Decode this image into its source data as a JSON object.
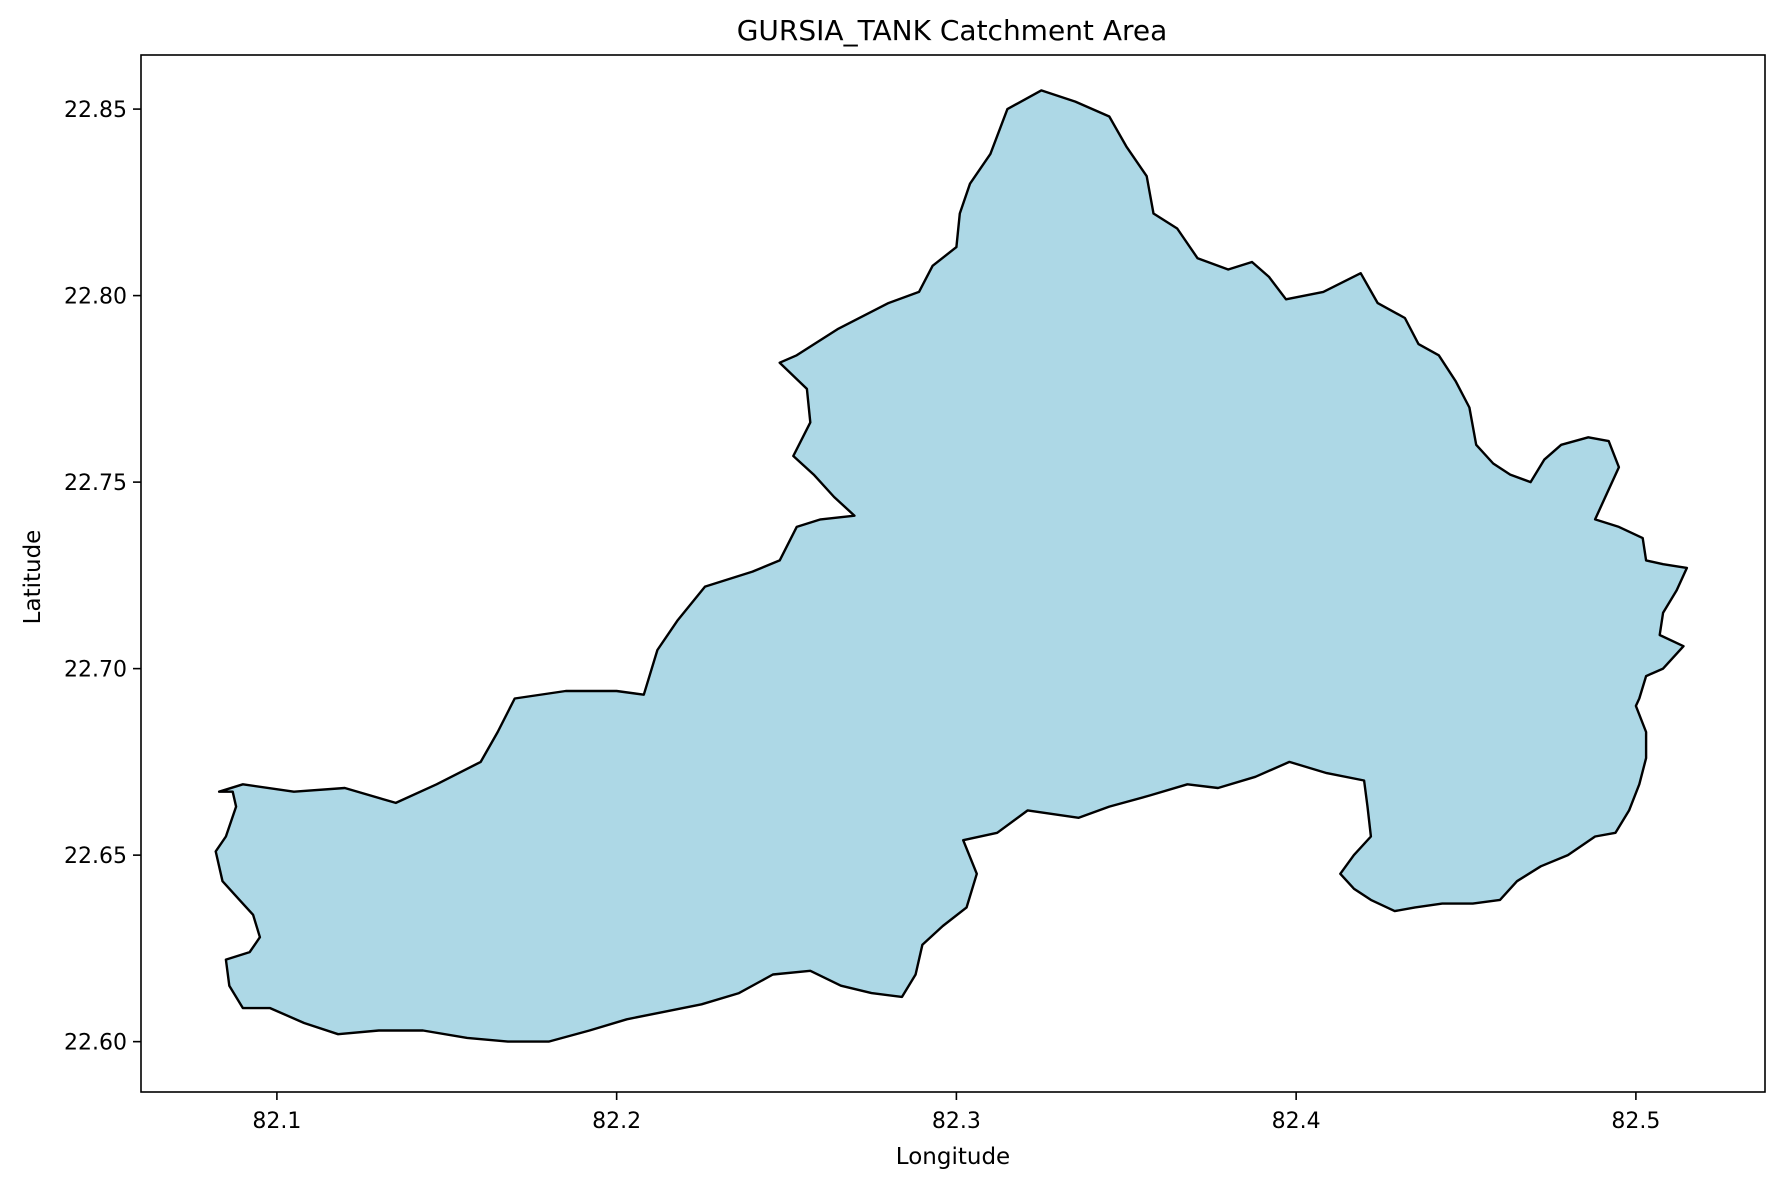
{
  "chart_data": {
    "type": "map-polygon",
    "title": "GURSIA_TANK Catchment Area",
    "xlabel": "Longitude",
    "ylabel": "Latitude",
    "xlim": [
      82.06,
      82.538
    ],
    "ylim": [
      22.5865,
      22.8645
    ],
    "xticks": [
      82.1,
      82.2,
      82.3,
      82.4,
      82.5
    ],
    "xtick_labels": [
      "82.1",
      "82.2",
      "82.3",
      "82.4",
      "82.5"
    ],
    "yticks": [
      22.6,
      22.65,
      22.7,
      22.75,
      22.8,
      22.85
    ],
    "ytick_labels": [
      "22.60",
      "22.65",
      "22.70",
      "22.75",
      "22.80",
      "22.85"
    ],
    "grid": false,
    "fill_color": "#add8e6",
    "edge_color": "#000000",
    "boundary": [
      [
        82.083,
        22.667
      ],
      [
        82.09,
        22.669
      ],
      [
        82.105,
        22.667
      ],
      [
        82.12,
        22.668
      ],
      [
        82.135,
        22.664
      ],
      [
        82.147,
        22.669
      ],
      [
        82.16,
        22.675
      ],
      [
        82.165,
        22.683
      ],
      [
        82.17,
        22.692
      ],
      [
        82.185,
        22.694
      ],
      [
        82.2,
        22.694
      ],
      [
        82.208,
        22.693
      ],
      [
        82.212,
        22.705
      ],
      [
        82.218,
        22.713
      ],
      [
        82.226,
        22.722
      ],
      [
        82.24,
        22.726
      ],
      [
        82.248,
        22.729
      ],
      [
        82.253,
        22.738
      ],
      [
        82.26,
        22.74
      ],
      [
        82.27,
        22.741
      ],
      [
        82.264,
        22.746
      ],
      [
        82.258,
        22.752
      ],
      [
        82.252,
        22.757
      ],
      [
        82.257,
        22.766
      ],
      [
        82.256,
        22.775
      ],
      [
        82.248,
        22.782
      ],
      [
        82.253,
        22.784
      ],
      [
        82.265,
        22.791
      ],
      [
        82.28,
        22.798
      ],
      [
        82.289,
        22.801
      ],
      [
        82.293,
        22.808
      ],
      [
        82.3,
        22.813
      ],
      [
        82.301,
        22.822
      ],
      [
        82.304,
        22.83
      ],
      [
        82.31,
        22.838
      ],
      [
        82.315,
        22.85
      ],
      [
        82.325,
        22.855
      ],
      [
        82.335,
        22.852
      ],
      [
        82.345,
        22.848
      ],
      [
        82.35,
        22.84
      ],
      [
        82.356,
        22.832
      ],
      [
        82.358,
        22.822
      ],
      [
        82.365,
        22.818
      ],
      [
        82.371,
        22.81
      ],
      [
        82.38,
        22.807
      ],
      [
        82.387,
        22.809
      ],
      [
        82.392,
        22.805
      ],
      [
        82.397,
        22.799
      ],
      [
        82.408,
        22.801
      ],
      [
        82.419,
        22.806
      ],
      [
        82.424,
        22.798
      ],
      [
        82.432,
        22.794
      ],
      [
        82.436,
        22.787
      ],
      [
        82.442,
        22.784
      ],
      [
        82.447,
        22.777
      ],
      [
        82.451,
        22.77
      ],
      [
        82.453,
        22.76
      ],
      [
        82.458,
        22.755
      ],
      [
        82.463,
        22.752
      ],
      [
        82.469,
        22.75
      ],
      [
        82.473,
        22.756
      ],
      [
        82.478,
        22.76
      ],
      [
        82.486,
        22.762
      ],
      [
        82.492,
        22.761
      ],
      [
        82.495,
        22.754
      ],
      [
        82.491,
        22.746
      ],
      [
        82.488,
        22.74
      ],
      [
        82.495,
        22.738
      ],
      [
        82.502,
        22.735
      ],
      [
        82.503,
        22.729
      ],
      [
        82.508,
        22.728
      ],
      [
        82.515,
        22.727
      ],
      [
        82.512,
        22.721
      ],
      [
        82.508,
        22.715
      ],
      [
        82.507,
        22.709
      ],
      [
        82.514,
        22.706
      ],
      [
        82.508,
        22.7
      ],
      [
        82.503,
        22.698
      ],
      [
        82.501,
        22.692
      ],
      [
        82.5,
        22.69
      ],
      [
        82.503,
        22.683
      ],
      [
        82.503,
        22.676
      ],
      [
        82.501,
        22.669
      ],
      [
        82.498,
        22.662
      ],
      [
        82.494,
        22.656
      ],
      [
        82.488,
        22.655
      ],
      [
        82.48,
        22.65
      ],
      [
        82.472,
        22.647
      ],
      [
        82.465,
        22.643
      ],
      [
        82.46,
        22.638
      ],
      [
        82.452,
        22.637
      ],
      [
        82.443,
        22.637
      ],
      [
        82.435,
        22.636
      ],
      [
        82.429,
        22.635
      ],
      [
        82.422,
        22.638
      ],
      [
        82.417,
        22.641
      ],
      [
        82.413,
        22.645
      ],
      [
        82.417,
        22.65
      ],
      [
        82.422,
        22.655
      ],
      [
        82.421,
        22.663
      ],
      [
        82.42,
        22.67
      ],
      [
        82.409,
        22.672
      ],
      [
        82.398,
        22.675
      ],
      [
        82.388,
        22.671
      ],
      [
        82.377,
        22.668
      ],
      [
        82.368,
        22.669
      ],
      [
        82.357,
        22.666
      ],
      [
        82.345,
        22.663
      ],
      [
        82.336,
        22.66
      ],
      [
        82.321,
        22.662
      ],
      [
        82.312,
        22.656
      ],
      [
        82.302,
        22.654
      ],
      [
        82.306,
        22.645
      ],
      [
        82.303,
        22.636
      ],
      [
        82.296,
        22.631
      ],
      [
        82.29,
        22.626
      ],
      [
        82.288,
        22.618
      ],
      [
        82.284,
        22.612
      ],
      [
        82.275,
        22.613
      ],
      [
        82.266,
        22.615
      ],
      [
        82.257,
        22.619
      ],
      [
        82.246,
        22.618
      ],
      [
        82.236,
        22.613
      ],
      [
        82.225,
        22.61
      ],
      [
        82.214,
        22.608
      ],
      [
        82.203,
        22.606
      ],
      [
        82.192,
        22.603
      ],
      [
        82.18,
        22.6
      ],
      [
        82.168,
        22.6
      ],
      [
        82.156,
        22.601
      ],
      [
        82.143,
        22.603
      ],
      [
        82.13,
        22.603
      ],
      [
        82.118,
        22.602
      ],
      [
        82.108,
        22.605
      ],
      [
        82.098,
        22.609
      ],
      [
        82.09,
        22.609
      ],
      [
        82.086,
        22.615
      ],
      [
        82.085,
        22.622
      ],
      [
        82.092,
        22.624
      ],
      [
        82.095,
        22.628
      ],
      [
        82.093,
        22.634
      ],
      [
        82.089,
        22.638
      ],
      [
        82.084,
        22.643
      ],
      [
        82.082,
        22.651
      ],
      [
        82.085,
        22.655
      ],
      [
        82.088,
        22.663
      ],
      [
        82.087,
        22.667
      ]
    ]
  }
}
